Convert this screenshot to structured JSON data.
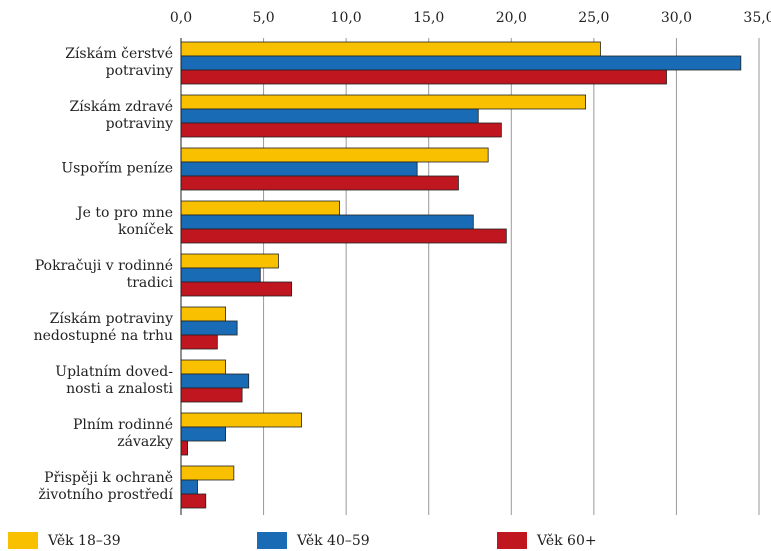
{
  "chart_data": {
    "type": "barh",
    "categories": [
      "Získám čerstvé\npotraviny",
      "Získám zdravé\npotraviny",
      "Uspořím peníze",
      "Je to pro mne\nkoníček",
      "Pokračuji v rodinné\ntradici",
      "Získám potraviny\nnedostupné na trhu",
      "Uplatním doved-\nnosti a znalosti",
      "Plním rodinné\nzávazky",
      "Přispěji k ochraně\nživotního prostředí"
    ],
    "series": [
      {
        "name": "Věk 18–39",
        "color": "#f9c000",
        "values": [
          25.4,
          24.5,
          18.6,
          9.6,
          5.9,
          2.7,
          2.7,
          7.3,
          3.2
        ]
      },
      {
        "name": "Věk 40–59",
        "color": "#1a6bb5",
        "values": [
          33.9,
          18.0,
          14.3,
          17.7,
          4.8,
          3.4,
          4.1,
          2.7,
          1.0
        ]
      },
      {
        "name": "Věk 60+",
        "color": "#c0161f",
        "values": [
          29.4,
          19.4,
          16.8,
          19.7,
          6.7,
          2.2,
          3.7,
          0.4,
          1.5
        ]
      }
    ],
    "xlim": [
      0,
      35
    ],
    "xticks": [
      {
        "value": 0,
        "label": "0,0"
      },
      {
        "value": 5,
        "label": "5,0"
      },
      {
        "value": 10,
        "label": "10,0"
      },
      {
        "value": 15,
        "label": "15,0"
      },
      {
        "value": 20,
        "label": "20,0"
      },
      {
        "value": 25,
        "label": "25,0"
      },
      {
        "value": 30,
        "label": "30,0"
      },
      {
        "value": 35,
        "label": "35,0"
      }
    ],
    "grid": true
  }
}
